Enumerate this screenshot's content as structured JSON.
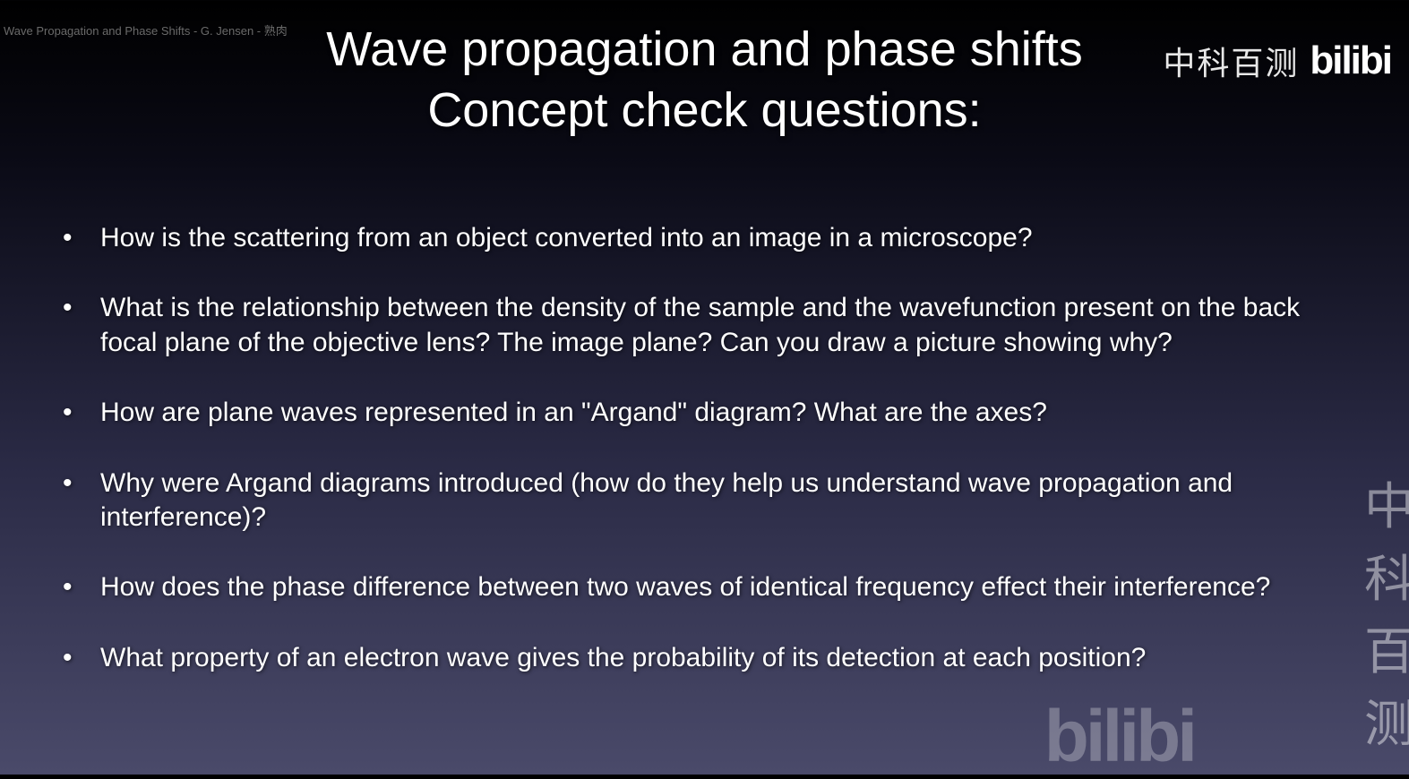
{
  "caption": "Wave Propagation and Phase Shifts - G. Jensen - 熟肉",
  "watermark": {
    "cn": "中科百测",
    "bilibili": "bilibi"
  },
  "title": {
    "line1": "Wave propagation and phase shifts",
    "line2": "Concept check questions:"
  },
  "bullets": [
    "How is the scattering from an object converted into an image in a microscope?",
    "What is the relationship between the density of the sample and the wavefunction present on the back focal plane of the objective lens?  The image plane?  Can you draw a picture showing why?",
    "How are plane waves represented in an \"Argand\" diagram?  What are the axes?",
    "Why were Argand diagrams introduced (how do they help us understand wave propagation and interference)?",
    "How does the phase difference between two waves of identical frequency effect their interference?",
    "What property of an electron wave gives the probability of its detection at each position?"
  ]
}
